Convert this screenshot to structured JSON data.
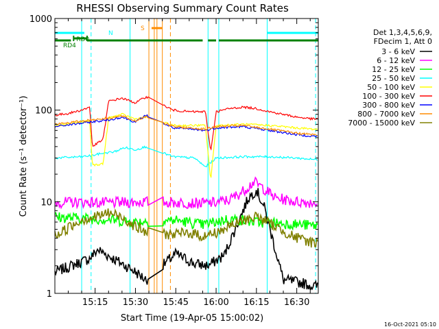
{
  "chart_data": {
    "type": "line",
    "title": "RHESSI Observing Summary Count Rates",
    "xlabel": "Start Time (19-Apr-05 15:00:02)",
    "ylabel": "Count Rate (s⁻¹ detector⁻¹)",
    "yscale": "log",
    "xlim": [
      "15:00:02",
      "16:38:00"
    ],
    "ylim": [
      1,
      1000
    ],
    "x_ticks": [
      "15:15",
      "15:30",
      "15:45",
      "16:00",
      "16:15",
      "16:30"
    ],
    "y_ticks": [
      "1",
      "10",
      "100",
      "1000"
    ],
    "legend": {
      "position": "right",
      "header": [
        "Det 1,3,4,5,6,9,",
        "FDecim 1, Att 0"
      ]
    },
    "series": [
      {
        "name": "3 - 6 keV",
        "color": "#000000",
        "x": [
          "15:00",
          "15:13",
          "15:16",
          "15:29",
          "15:34",
          "15:45",
          "15:52",
          "15:57",
          "16:03",
          "16:08",
          "16:12",
          "16:15",
          "16:18",
          "16:25",
          "16:32",
          "16:36"
        ],
        "y": [
          1.7,
          2.4,
          3.0,
          1.8,
          1.4,
          2.7,
          2.1,
          2.0,
          2.6,
          5.8,
          11.0,
          13.5,
          8.5,
          1.4,
          1.3,
          1.2
        ]
      },
      {
        "name": "6 - 12 keV",
        "color": "#ff00ff",
        "x": [
          "15:00",
          "15:10",
          "15:20",
          "15:30",
          "15:36",
          "15:45",
          "15:55",
          "16:00",
          "16:05",
          "16:10",
          "16:14",
          "16:17",
          "16:22",
          "16:30",
          "16:36"
        ],
        "y": [
          9.8,
          9.9,
          9.7,
          9.9,
          10.0,
          9.8,
          9.6,
          9.8,
          10.5,
          13.0,
          16.5,
          14.5,
          11.0,
          10.0,
          9.8
        ]
      },
      {
        "name": "12 - 25 keV",
        "color": "#00ff00",
        "x": [
          "15:00",
          "15:10",
          "15:20",
          "15:30",
          "15:36",
          "15:45",
          "15:55",
          "16:05",
          "16:15",
          "16:25",
          "16:36"
        ],
        "y": [
          6.8,
          6.6,
          6.4,
          6.0,
          6.2,
          6.3,
          5.6,
          6.5,
          6.0,
          5.8,
          5.5
        ]
      },
      {
        "name": "25 - 50 keV",
        "color": "#00ffff",
        "x": [
          "15:00",
          "15:10",
          "15:14",
          "15:18",
          "15:22",
          "15:26",
          "15:30",
          "15:34",
          "15:44",
          "15:52",
          "15:56",
          "16:00",
          "16:10",
          "16:20",
          "16:30",
          "16:36"
        ],
        "y": [
          30,
          31,
          32,
          34,
          35,
          39,
          37,
          40,
          31,
          30,
          24,
          30,
          31,
          31,
          30,
          29
        ]
      },
      {
        "name": "50 - 100 keV",
        "color": "#ffff00",
        "x": [
          "15:00",
          "15:10",
          "15:13",
          "15:14",
          "15:18",
          "15:20",
          "15:25",
          "15:30",
          "15:34",
          "15:44",
          "15:50",
          "15:56",
          "15:58",
          "16:00",
          "16:10",
          "16:20",
          "16:30",
          "16:36"
        ],
        "y": [
          68,
          74,
          76,
          25,
          26,
          82,
          90,
          80,
          84,
          68,
          68,
          68,
          17,
          68,
          70,
          68,
          64,
          62
        ]
      },
      {
        "name": "100 - 300 keV",
        "color": "#ff0000",
        "x": [
          "15:00",
          "15:05",
          "15:10",
          "15:13",
          "15:14",
          "15:18",
          "15:20",
          "15:25",
          "15:30",
          "15:34",
          "15:44",
          "15:50",
          "15:56",
          "15:58",
          "16:00",
          "16:05",
          "16:10",
          "16:15",
          "16:20",
          "16:30",
          "16:36"
        ],
        "y": [
          88,
          92,
          100,
          108,
          40,
          48,
          125,
          135,
          120,
          140,
          100,
          96,
          96,
          35,
          96,
          104,
          108,
          104,
          96,
          84,
          80
        ]
      },
      {
        "name": "300 - 800 keV",
        "color": "#0000ff",
        "x": [
          "15:00",
          "15:10",
          "15:13",
          "15:20",
          "15:25",
          "15:30",
          "15:34",
          "15:44",
          "15:50",
          "15:56",
          "16:00",
          "16:10",
          "16:20",
          "16:30",
          "16:36"
        ],
        "y": [
          66,
          72,
          74,
          78,
          84,
          74,
          88,
          64,
          62,
          60,
          64,
          66,
          60,
          54,
          52
        ]
      },
      {
        "name": "800 - 7000 keV",
        "color": "#ff8c00",
        "x": [
          "15:00",
          "15:10",
          "15:13",
          "15:20",
          "15:25",
          "15:30",
          "15:34",
          "15:44",
          "15:50",
          "15:56",
          "16:00",
          "16:10",
          "16:20",
          "16:30",
          "16:36"
        ],
        "y": [
          70,
          76,
          78,
          82,
          86,
          76,
          86,
          66,
          64,
          62,
          66,
          68,
          62,
          56,
          54
        ]
      },
      {
        "name": "7000 - 15000 keV",
        "color": "#808000",
        "x": [
          "15:00",
          "15:05",
          "15:10",
          "15:15",
          "15:20",
          "15:25",
          "15:30",
          "15:34",
          "15:45",
          "15:50",
          "15:55",
          "16:00",
          "16:05",
          "16:10",
          "16:15",
          "16:20",
          "16:25",
          "16:30",
          "16:36"
        ],
        "y": [
          4.2,
          5.2,
          6.4,
          6.8,
          7.6,
          6.8,
          5.4,
          4.6,
          4.4,
          4.6,
          4.2,
          4.6,
          5.4,
          6.2,
          7.0,
          5.8,
          4.8,
          4.0,
          3.6
        ]
      }
    ],
    "state_bars": [
      {
        "label": "N",
        "color": "#00ffff",
        "segments": [
          [
            "15:00",
            "15:11"
          ],
          [
            "16:19",
            "16:38"
          ]
        ]
      },
      {
        "label": "S",
        "color": "#ff8c00",
        "segments": [
          [
            "15:36",
            "15:40"
          ]
        ]
      },
      {
        "label": "RD0",
        "color": "#008000",
        "segments": [
          [
            "15:07",
            "15:12"
          ]
        ]
      },
      {
        "label": "RD4",
        "color": "#008000",
        "segments": [
          [
            "15:00",
            "15:06"
          ],
          [
            "15:12",
            "15:55"
          ],
          [
            "15:57",
            "16:00"
          ],
          [
            "16:01",
            "16:38"
          ]
        ]
      }
    ]
  },
  "footer": {
    "timestamp": "16-Oct-2021 05:10"
  }
}
